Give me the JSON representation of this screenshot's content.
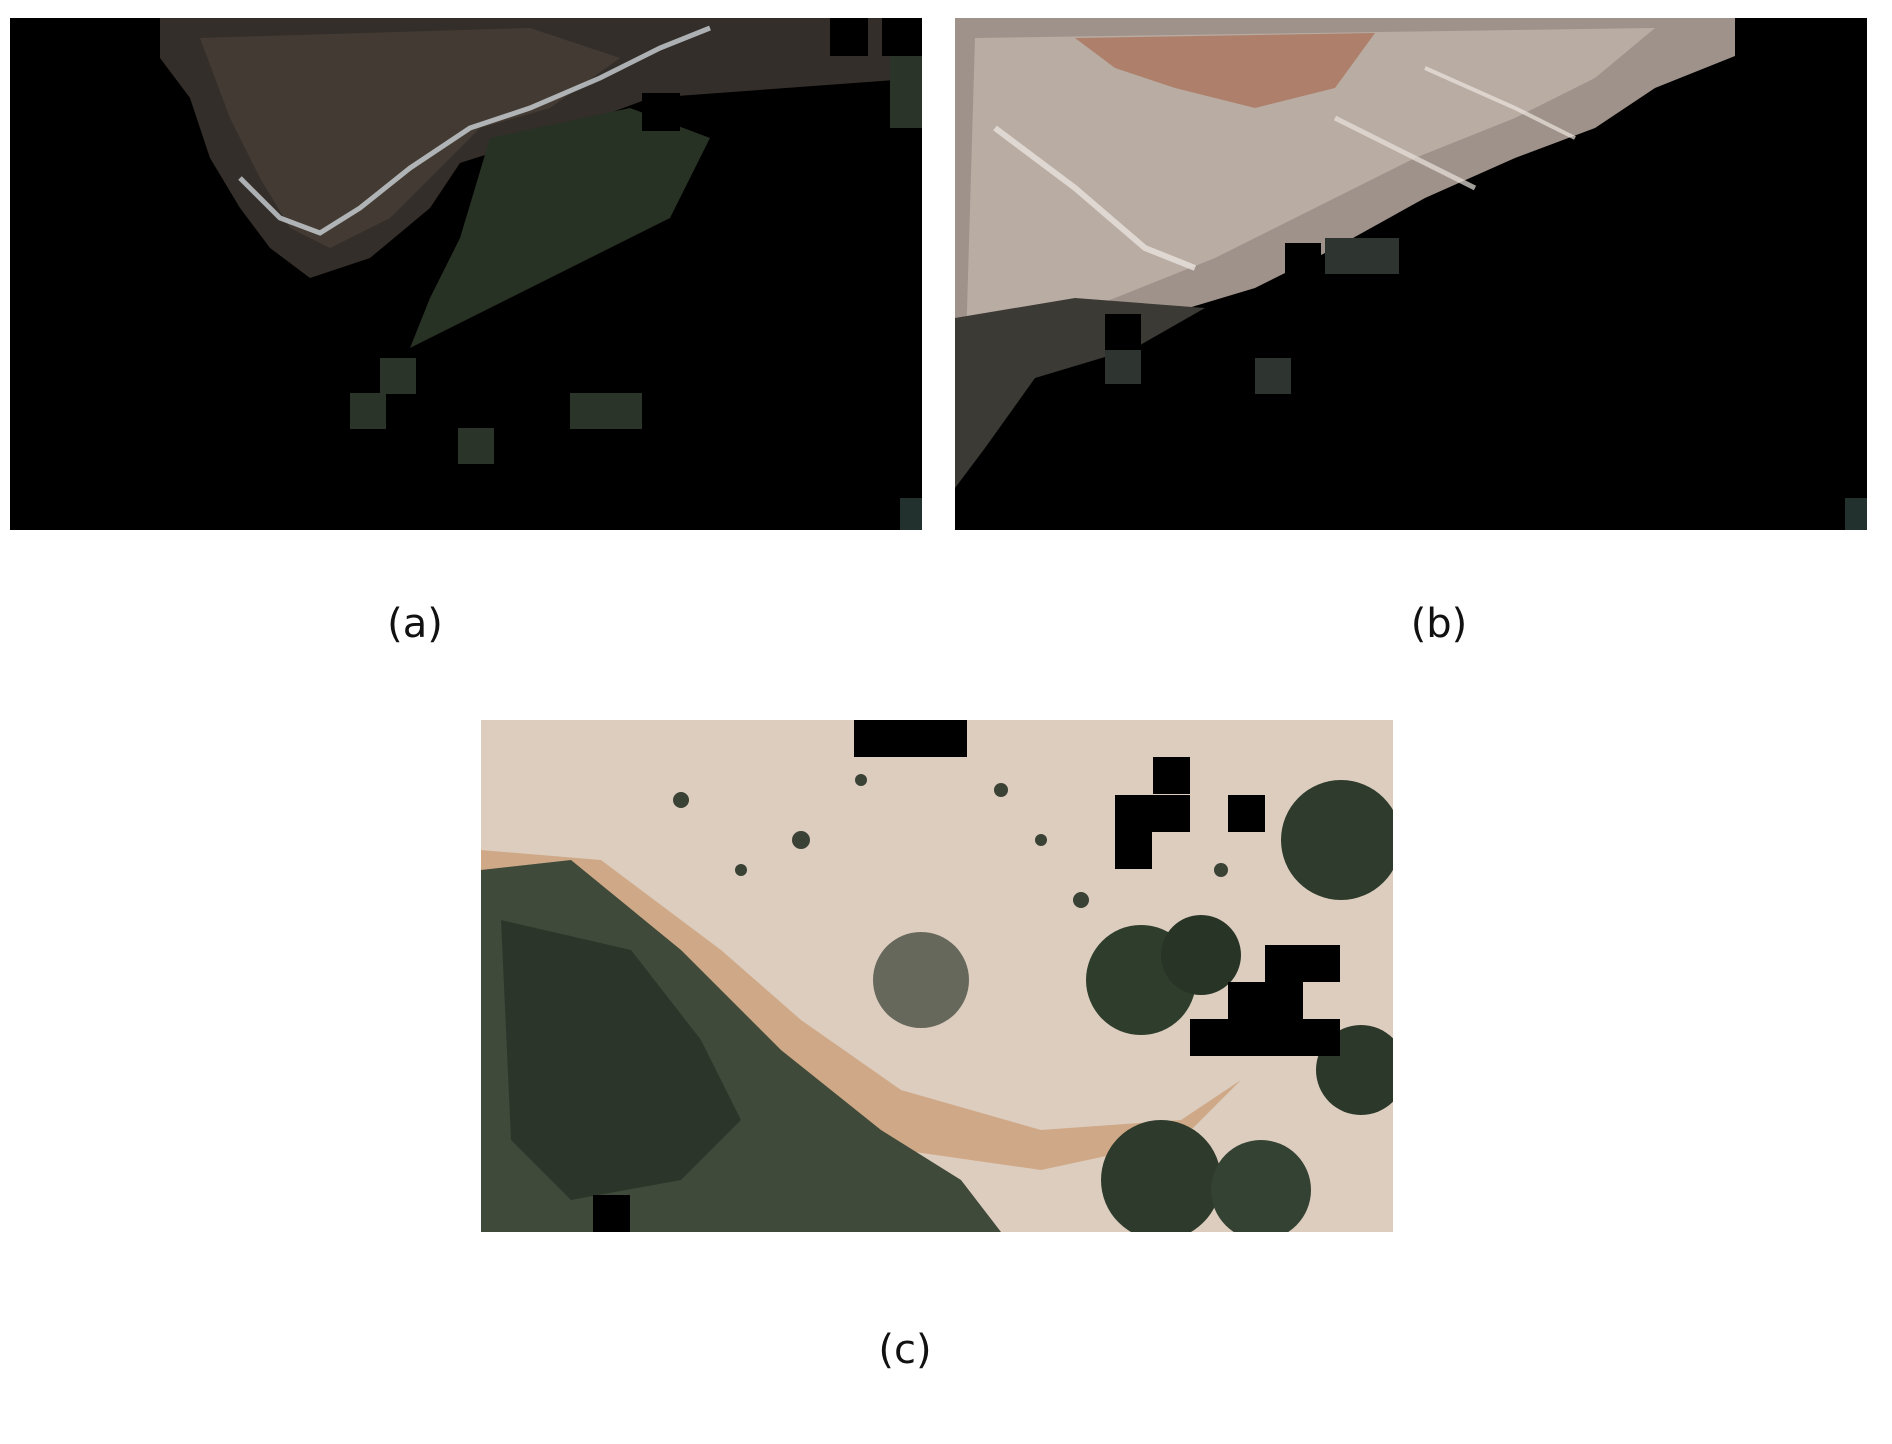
{
  "figure": {
    "panels": [
      {
        "caption": "(a)",
        "scene": "dark-rocky-coastline-with-masked-tiles"
      },
      {
        "caption": "(b)",
        "scene": "rocky-slope-with-masked-tiles"
      },
      {
        "caption": "(c)",
        "scene": "dirt-path-with-shrubs-and-masked-tiles"
      }
    ],
    "colors": {
      "mask": "#000000",
      "rock_dark": "#3a3530",
      "rock_light": "#b7aca4",
      "soil": "#d9c1a9",
      "vegetation": "#2e3a2a",
      "water_foam": "#dfe8ee"
    }
  }
}
